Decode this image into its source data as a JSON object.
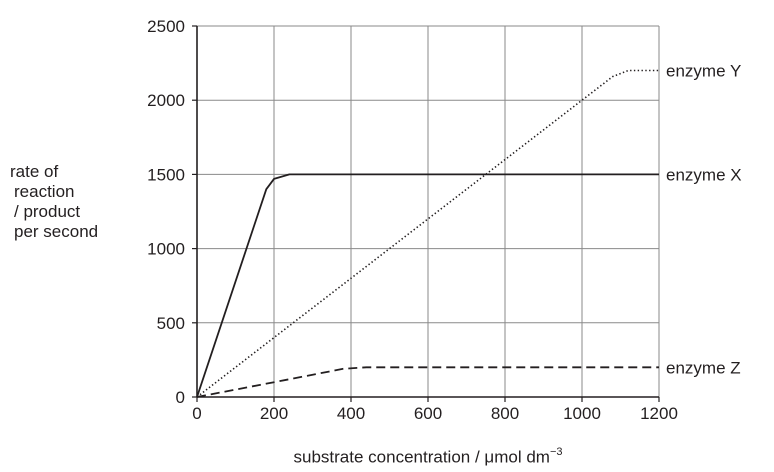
{
  "chart_data": {
    "type": "line",
    "title": "",
    "ylabel_lines": [
      "rate of",
      "reaction",
      "/ product",
      "per second"
    ],
    "xlabel_prefix": "substrate concentration / ",
    "xlabel_unit": "μmol dm",
    "xlabel_exponent": "−3",
    "xlim": [
      0,
      1200
    ],
    "ylim": [
      0,
      2500
    ],
    "xticks": [
      0,
      200,
      400,
      600,
      800,
      1000,
      1200
    ],
    "yticks": [
      0,
      500,
      1000,
      1500,
      2000,
      2500
    ],
    "grid": true,
    "series": [
      {
        "name": "enzyme Y",
        "style": "dotted",
        "x": [
          0,
          200,
          400,
          600,
          800,
          1000,
          1080,
          1120,
          1200
        ],
        "y": [
          0,
          400,
          800,
          1200,
          1600,
          2000,
          2160,
          2200,
          2200
        ]
      },
      {
        "name": "enzyme X",
        "style": "solid",
        "x": [
          0,
          180,
          200,
          240,
          400,
          600,
          800,
          1000,
          1200
        ],
        "y": [
          0,
          1400,
          1470,
          1500,
          1500,
          1500,
          1500,
          1500,
          1500
        ]
      },
      {
        "name": "enzyme Z",
        "style": "dashed",
        "x": [
          0,
          200,
          380,
          440,
          600,
          800,
          1000,
          1200
        ],
        "y": [
          0,
          100,
          190,
          200,
          200,
          200,
          200,
          200
        ]
      }
    ],
    "line_color": "#231f20",
    "grid_color": "#8a8a8a"
  }
}
